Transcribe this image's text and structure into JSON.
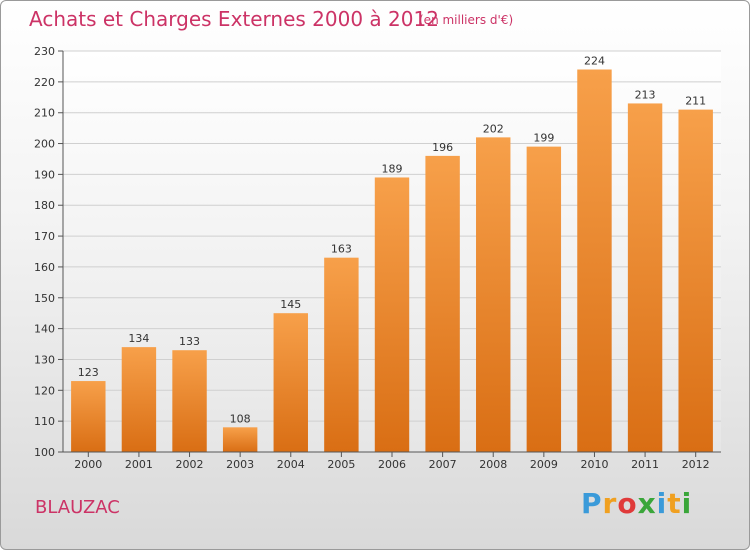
{
  "chart_data": {
    "type": "bar",
    "title": "Achats et Charges Externes 2000 à 2012",
    "subtitle": "(en milliers d'€)",
    "categories": [
      "2000",
      "2001",
      "2002",
      "2003",
      "2004",
      "2005",
      "2006",
      "2007",
      "2008",
      "2009",
      "2010",
      "2011",
      "2012"
    ],
    "values": [
      123,
      134,
      133,
      108,
      145,
      163,
      189,
      196,
      202,
      199,
      224,
      213,
      211
    ],
    "ylim": [
      100,
      230
    ],
    "yticks": [
      100,
      110,
      120,
      130,
      140,
      150,
      160,
      170,
      180,
      190,
      200,
      210,
      220,
      230
    ],
    "grid": true,
    "bar_color": "#f0943a",
    "xlabel": "",
    "ylabel": ""
  },
  "footer": {
    "town": "BLAUZAC",
    "logo_letters": [
      "P",
      "r",
      "o",
      "x",
      "i",
      "t",
      "i"
    ],
    "logo_colors": [
      "#3a9ad9",
      "#f0a020",
      "#e03a3a",
      "#3aa63a",
      "#3a9ad9",
      "#f0a020",
      "#3aa63a"
    ]
  }
}
